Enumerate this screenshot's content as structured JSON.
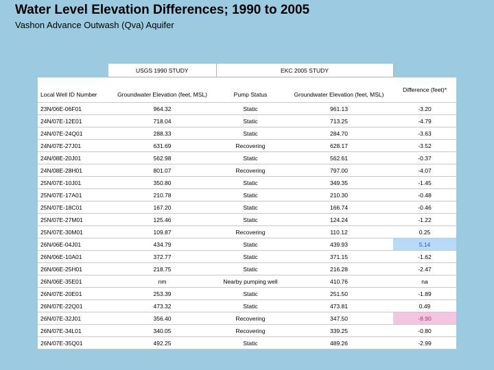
{
  "header": {
    "title": "Water Level Elevation Differences; 1990 to 2005",
    "subtitle": "Vashon Advance Outwash (Qva) Aquifer"
  },
  "table": {
    "group_headers": [
      "USGS 1990 STUDY",
      "EKC 2005 STUDY"
    ],
    "columns": [
      "Local Well ID Number",
      "Groundwater Elevation (feet, MSL)",
      "Pump Status",
      "Groundwater Elevation (feet, MSL)",
      "Difference (feet)*"
    ],
    "rows": [
      [
        "23N/06E-06F01",
        "964.32",
        "Static",
        "961.13",
        "-3.20"
      ],
      [
        "24N/07E-12E01",
        "718.04",
        "Static",
        "713.25",
        "-4.79"
      ],
      [
        "24N/07E-24Q01",
        "288.33",
        "Static",
        "284.70",
        "-3.63"
      ],
      [
        "24N/07E-27J01",
        "631.69",
        "Recovering",
        "628.17",
        "-3.52"
      ],
      [
        "24N/08E-20J01",
        "562.98",
        "Static",
        "562.61",
        "-0.37"
      ],
      [
        "24N/08E-28H01",
        "801.07",
        "Recovering",
        "797.00",
        "-4.07"
      ],
      [
        "25N/07E-10J01",
        "350.80",
        "Static",
        "349.35",
        "-1.45"
      ],
      [
        "25N/07E-17A01",
        "210.78",
        "Static",
        "210.30",
        "-0.48"
      ],
      [
        "25N/07E-18C01",
        "167.20",
        "Static",
        "166.74",
        "-0.46"
      ],
      [
        "25N/07E-27M01",
        "125.46",
        "Static",
        "124.24",
        "-1.22"
      ],
      [
        "25N/07E-30M01",
        "109.87",
        "Recovering",
        "110.12",
        "0.25"
      ],
      [
        "26N/06E-04J01",
        "434.79",
        "Static",
        "439.93",
        "5.14"
      ],
      [
        "26N/06E-10A01",
        "372.77",
        "Static",
        "371.15",
        "-1.62"
      ],
      [
        "26N/06E-25H01",
        "218.75",
        "Static",
        "216.28",
        "-2.47"
      ],
      [
        "26N/06E-35E01",
        "nm",
        "Nearby pumping well",
        "410.76",
        "na"
      ],
      [
        "26N/07E-20E01",
        "253.39",
        "Static",
        "251.50",
        "-1.89"
      ],
      [
        "26N/07E-22Q01",
        "473.32",
        "Static",
        "473.81",
        "0.49"
      ],
      [
        "26N/07E-32J01",
        "356.40",
        "Recovering",
        "347.50",
        "-8.90"
      ],
      [
        "26N/07E-34L01",
        "340.05",
        "Recovering",
        "339.25",
        "-0.80"
      ],
      [
        "26N/07E-35Q01",
        "492.25",
        "Static",
        "489.26",
        "-2.99"
      ]
    ]
  }
}
